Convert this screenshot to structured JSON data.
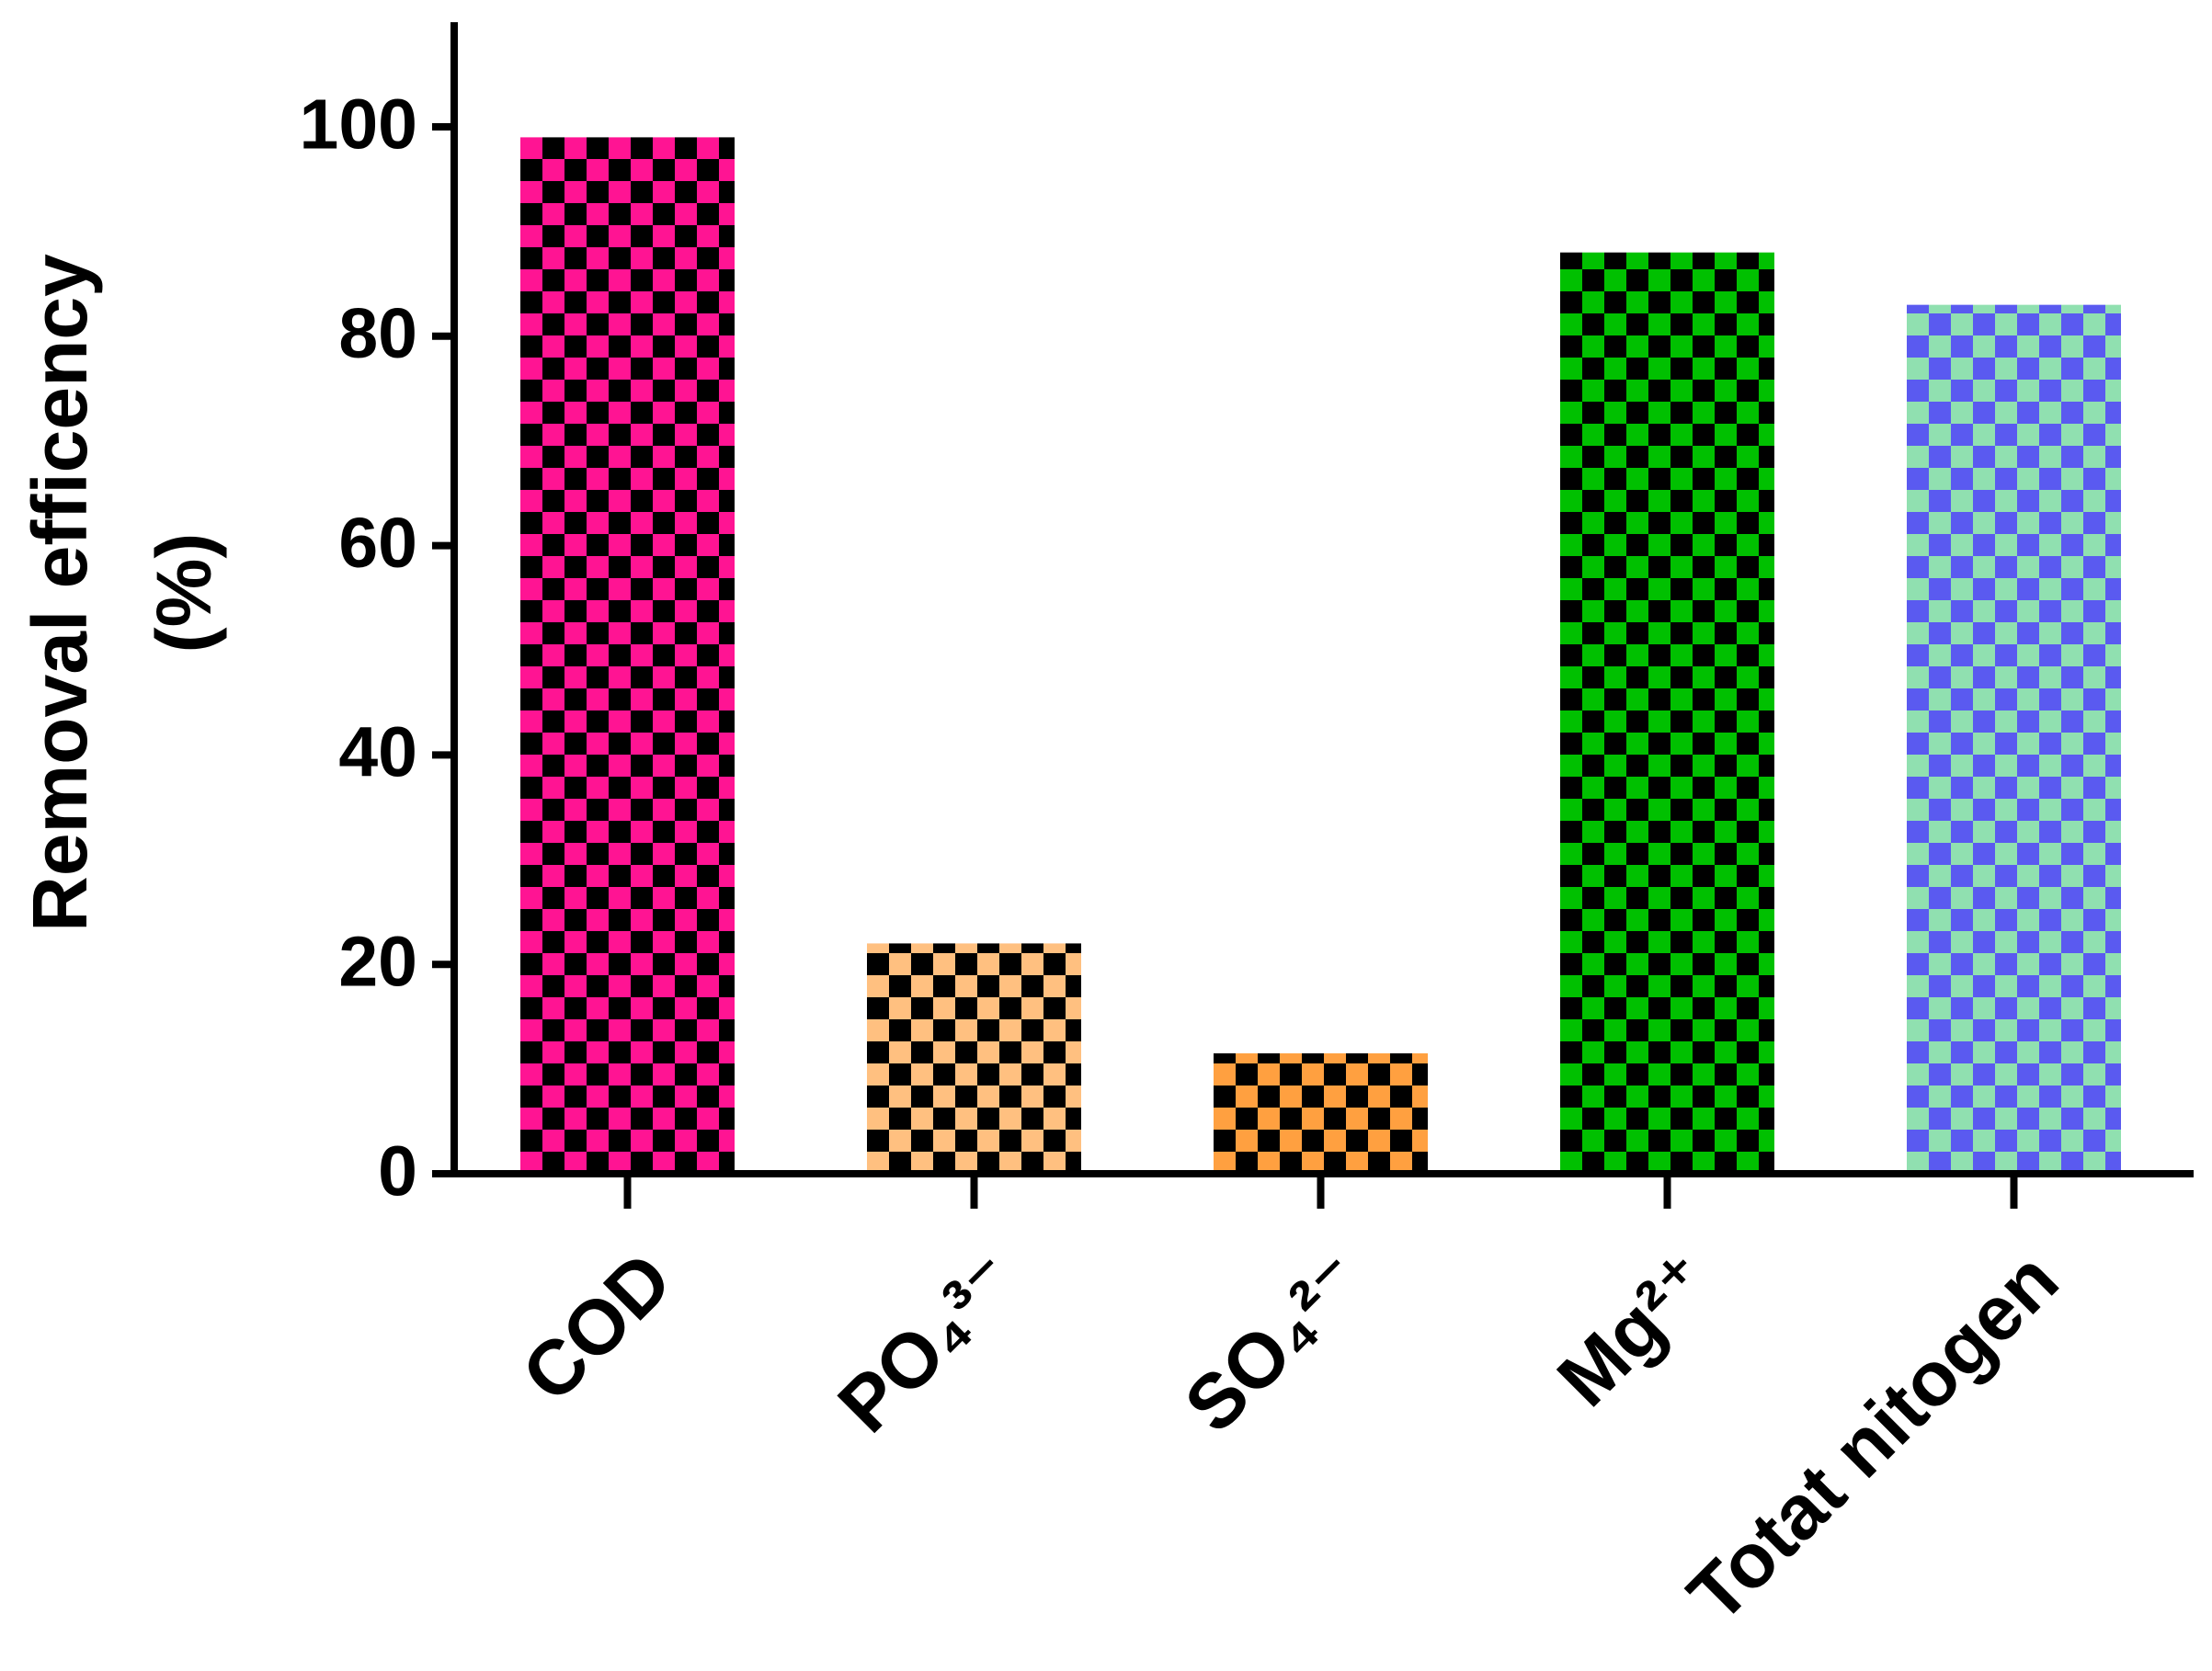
{
  "chart_data": {
    "type": "bar",
    "ylabel": [
      "Removal efficency",
      "(%)"
    ],
    "categories": [
      "COD",
      "PO₄³⁻",
      "SO₄²⁻",
      "Mg²⁺",
      "Totat nitogen"
    ],
    "values": [
      99,
      22,
      11.5,
      88,
      83
    ],
    "colors": [
      "#ff1493",
      "#ffc080",
      "#ffa040",
      "#00c000",
      "#90e0b0"
    ],
    "pattern_colors": [
      "#000000",
      "#000000",
      "#000000",
      "#000000",
      "#5a5af0"
    ],
    "pattern": "checker",
    "ylim": [
      0,
      110
    ],
    "yticks": [
      0,
      20,
      40,
      60,
      80,
      100
    ],
    "grid": false
  }
}
